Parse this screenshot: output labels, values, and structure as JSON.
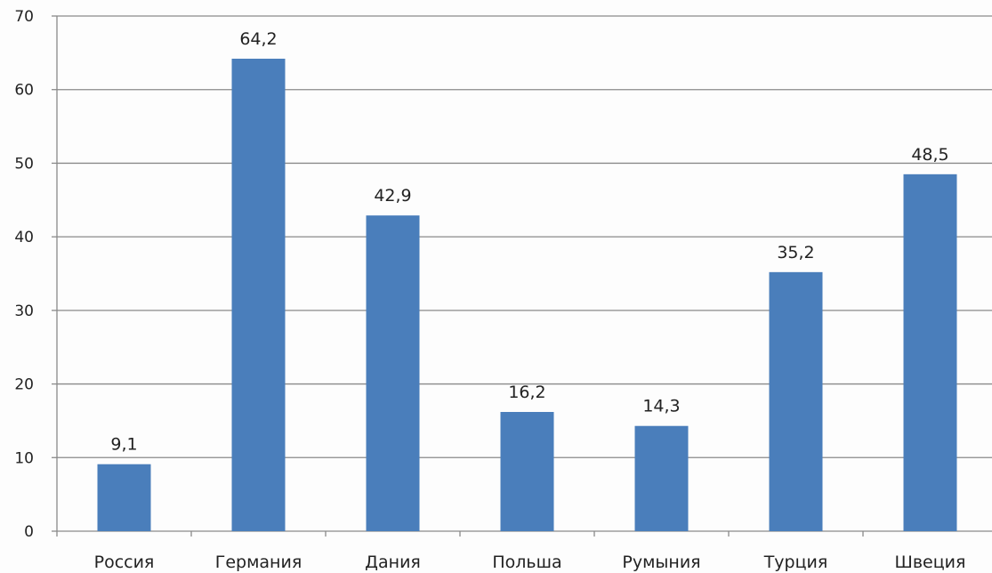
{
  "chart_data": {
    "type": "bar",
    "title": "",
    "xlabel": "",
    "ylabel": "",
    "categories": [
      "Россия",
      "Германия",
      "Дания",
      "Польша",
      "Румыния",
      "Турция",
      "Швеция"
    ],
    "values": [
      9.1,
      64.2,
      42.9,
      16.2,
      14.3,
      35.2,
      48.5
    ],
    "value_labels": [
      "9,1",
      "64,2",
      "42,9",
      "16,2",
      "14,3",
      "35,2",
      "48,5"
    ],
    "ylim": [
      0,
      70
    ],
    "yticks": [
      0,
      10,
      20,
      30,
      40,
      50,
      60,
      70
    ],
    "grid": true,
    "legend": "none",
    "colors": {
      "bar": "#4a7ebb",
      "grid": "#8a8a8a",
      "axis": "#8a8a8a"
    }
  }
}
